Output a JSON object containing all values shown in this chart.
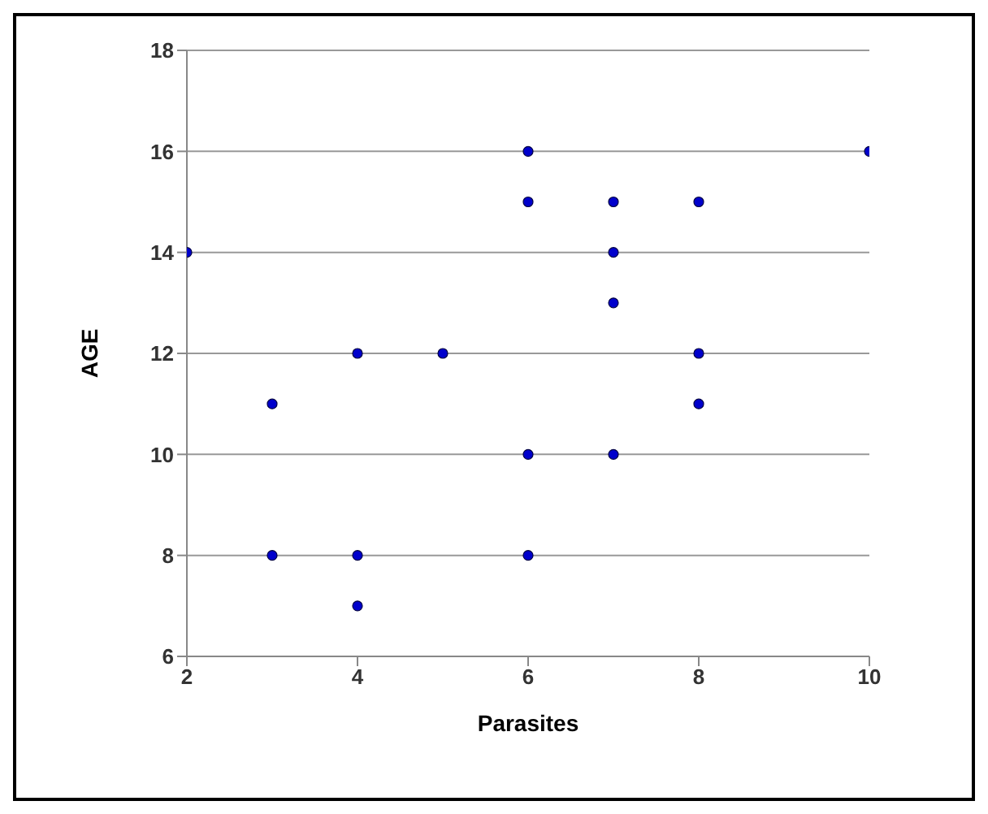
{
  "chart_data": {
    "type": "scatter",
    "xlabel": "Parasites",
    "ylabel": "AGE",
    "series": [
      {
        "color": "#0000cc",
        "x": [
          2,
          3,
          3,
          4,
          4,
          4,
          5,
          6,
          6,
          6,
          6,
          7,
          7,
          7,
          7,
          8,
          8,
          8,
          10
        ],
        "values": [
          14,
          11,
          8,
          12,
          8,
          7,
          12,
          16,
          15,
          10,
          8,
          15,
          14,
          13,
          10,
          15,
          12,
          11,
          16
        ]
      }
    ],
    "xlim": [
      2,
      10
    ],
    "xticks": [
      2,
      4,
      6,
      8,
      10
    ],
    "ylim": [
      6,
      18
    ],
    "yticks": [
      6,
      8,
      10,
      12,
      14,
      16,
      18
    ],
    "grid": "y",
    "marker": "circle"
  }
}
